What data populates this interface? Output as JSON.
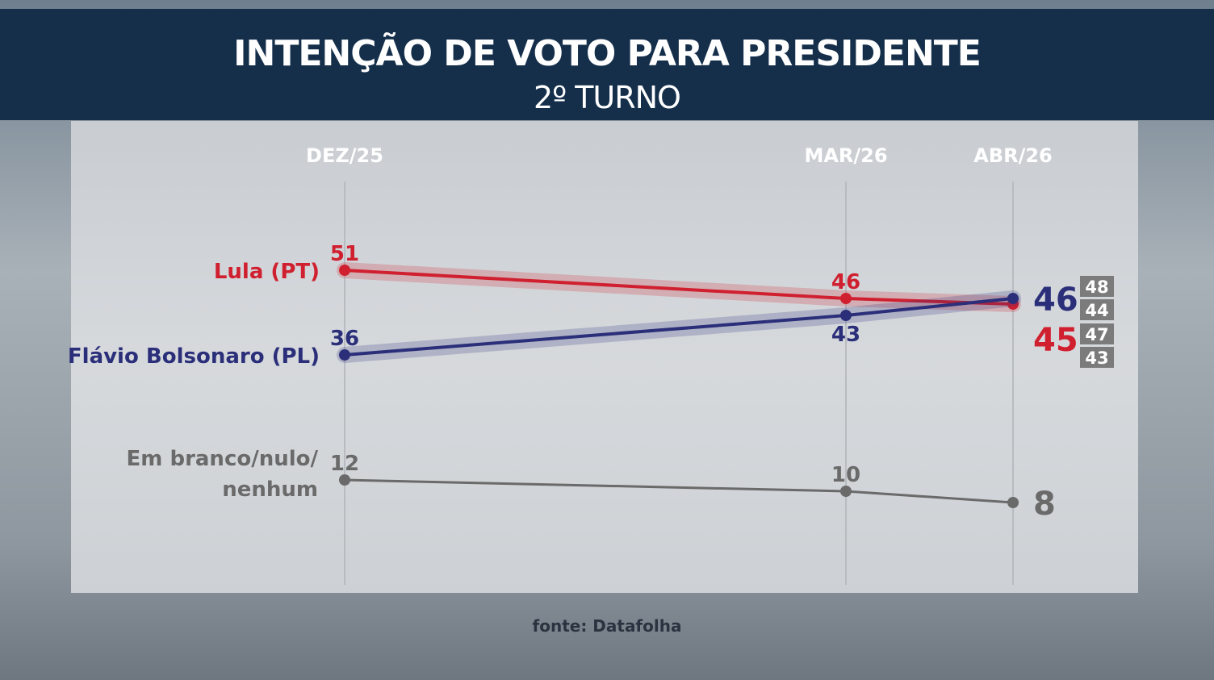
{
  "chart_data": {
    "type": "line",
    "title": "INTENÇÃO DE VOTO PARA PRESIDENTE",
    "subtitle": "2º TURNO",
    "categories": [
      "DEZ/25",
      "MAR/26",
      "ABR/26"
    ],
    "series": [
      {
        "name": "Lula (PT)",
        "values": [
          51,
          46,
          45
        ],
        "color": "#d0202f",
        "margin_range": [
          47,
          43
        ]
      },
      {
        "name": "Flávio Bolsonaro (PL)",
        "values": [
          36,
          43,
          46
        ],
        "color": "#2b2f7a",
        "margin_range": [
          48,
          44
        ]
      },
      {
        "name": "Em branco/nulo/ nenhum",
        "name_lines": [
          "Em branco/nulo/",
          "nenhum"
        ],
        "values": [
          12,
          10,
          8
        ],
        "color": "#6a6a6a"
      }
    ],
    "grid": "vertical lines at each date",
    "legend": "left, inline series labels",
    "source": "fonte: Datafolha"
  }
}
